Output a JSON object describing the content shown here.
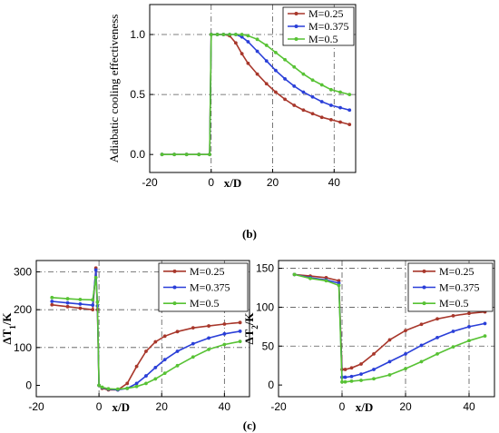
{
  "captions": {
    "b": "(b)",
    "c": "(c)"
  },
  "chart_data": [
    {
      "id": "b",
      "type": "line",
      "xlabel": "x/D",
      "ylabel": "Adiabatic cooling effectiveness",
      "xlim": [
        -20,
        47
      ],
      "ylim": [
        -0.15,
        1.25
      ],
      "xticks": [
        -20,
        0,
        20,
        40
      ],
      "yticks": [
        0.0,
        0.5,
        1.0
      ],
      "ytick_labels": [
        "0.0",
        "0.5",
        "1.0"
      ],
      "grid": "dash-dot at x=0, x=20, x=40, y=0.5, y=1.0",
      "legend_position": "top-right",
      "series": [
        {
          "name": "M=0.25",
          "color": "#a8372b",
          "x": [
            -16,
            -12,
            -8,
            -4,
            -0.5,
            0,
            2,
            4,
            6,
            8,
            10,
            12,
            15,
            18,
            21,
            24,
            27,
            30,
            33,
            36,
            39,
            42,
            45
          ],
          "y": [
            0,
            0,
            0,
            0,
            0,
            1.0,
            1.0,
            1.0,
            0.99,
            0.93,
            0.84,
            0.76,
            0.67,
            0.59,
            0.52,
            0.46,
            0.41,
            0.37,
            0.34,
            0.31,
            0.29,
            0.27,
            0.25
          ]
        },
        {
          "name": "M=0.375",
          "color": "#2a3fd8",
          "x": [
            -16,
            -12,
            -8,
            -4,
            -0.5,
            0,
            2,
            4,
            6,
            8,
            10,
            12,
            15,
            18,
            21,
            24,
            27,
            30,
            33,
            36,
            39,
            42,
            45
          ],
          "y": [
            0,
            0,
            0,
            0,
            0,
            1.0,
            1.0,
            1.0,
            1.0,
            1.0,
            0.98,
            0.94,
            0.86,
            0.78,
            0.7,
            0.63,
            0.57,
            0.52,
            0.48,
            0.44,
            0.41,
            0.39,
            0.37
          ]
        },
        {
          "name": "M=0.5",
          "color": "#57c234",
          "x": [
            -16,
            -12,
            -8,
            -4,
            -0.5,
            0,
            2,
            4,
            6,
            8,
            10,
            12,
            15,
            18,
            21,
            24,
            27,
            30,
            33,
            36,
            39,
            42,
            45
          ],
          "y": [
            0,
            0,
            0,
            0,
            0,
            1.0,
            1.0,
            1.0,
            1.0,
            1.0,
            1.0,
            0.99,
            0.96,
            0.91,
            0.85,
            0.79,
            0.73,
            0.67,
            0.62,
            0.58,
            0.54,
            0.52,
            0.5
          ]
        }
      ]
    },
    {
      "id": "c-left",
      "type": "line",
      "xlabel": "x/D",
      "ylabel": "ΔT1/K",
      "xlim": [
        -20,
        48
      ],
      "ylim": [
        -30,
        330
      ],
      "xticks": [
        -20,
        0,
        20,
        40
      ],
      "yticks": [
        0,
        100,
        200,
        300
      ],
      "grid": "dash-dot at x=0, x=20, x=40, y=100, y=200, y=300",
      "legend_position": "top-right",
      "series": [
        {
          "name": "M=0.25",
          "color": "#a8372b",
          "x": [
            -15,
            -10,
            -6,
            -2,
            -1,
            -0.5,
            0,
            1,
            3,
            6,
            9,
            12,
            15,
            18,
            21,
            25,
            30,
            35,
            40,
            45
          ],
          "y": [
            213,
            208,
            204,
            200,
            310,
            200,
            0,
            -8,
            -12,
            -12,
            5,
            50,
            90,
            115,
            130,
            142,
            152,
            157,
            162,
            166
          ]
        },
        {
          "name": "M=0.375",
          "color": "#2a3fd8",
          "x": [
            -15,
            -10,
            -6,
            -2,
            -1,
            -0.5,
            0,
            1,
            3,
            6,
            9,
            12,
            15,
            18,
            21,
            25,
            30,
            35,
            40,
            45
          ],
          "y": [
            222,
            218,
            215,
            212,
            305,
            210,
            0,
            -6,
            -10,
            -12,
            -8,
            5,
            25,
            47,
            68,
            90,
            110,
            125,
            136,
            143
          ]
        },
        {
          "name": "M=0.5",
          "color": "#57c234",
          "x": [
            -15,
            -10,
            -6,
            -2,
            -1,
            -0.5,
            0,
            1,
            3,
            6,
            9,
            12,
            15,
            18,
            21,
            25,
            30,
            35,
            40,
            45
          ],
          "y": [
            232,
            229,
            227,
            226,
            285,
            220,
            0,
            -5,
            -9,
            -10,
            -8,
            -3,
            5,
            17,
            32,
            52,
            75,
            95,
            108,
            116
          ]
        }
      ]
    },
    {
      "id": "c-right",
      "type": "line",
      "xlabel": "x/D",
      "ylabel": "ΔT2/K",
      "xlim": [
        -20,
        48
      ],
      "ylim": [
        -15,
        160
      ],
      "xticks": [
        -20,
        0,
        20,
        40
      ],
      "yticks": [
        0,
        50,
        100,
        150
      ],
      "grid": "dash-dot at x=0, x=20, x=40, y=50, y=100, y=150",
      "legend_position": "top-right",
      "series": [
        {
          "name": "M=0.25",
          "color": "#a8372b",
          "x": [
            -15,
            -10,
            -5,
            -1,
            0,
            1,
            3,
            6,
            10,
            15,
            20,
            25,
            30,
            35,
            40,
            45
          ],
          "y": [
            142,
            140,
            138,
            134,
            20,
            20,
            22,
            27,
            40,
            58,
            70,
            78,
            85,
            89,
            92,
            94
          ]
        },
        {
          "name": "M=0.375",
          "color": "#2a3fd8",
          "x": [
            -15,
            -10,
            -5,
            -1,
            0,
            1,
            3,
            6,
            10,
            15,
            20,
            25,
            30,
            35,
            40,
            45
          ],
          "y": [
            142,
            138,
            135,
            131,
            10,
            10,
            11,
            14,
            20,
            30,
            40,
            51,
            61,
            69,
            75,
            79
          ]
        },
        {
          "name": "M=0.5",
          "color": "#57c234",
          "x": [
            -15,
            -10,
            -5,
            -1,
            0,
            1,
            3,
            6,
            10,
            15,
            20,
            25,
            30,
            35,
            40,
            45
          ],
          "y": [
            142,
            137,
            134,
            128,
            4,
            4,
            5,
            6,
            8,
            13,
            21,
            30,
            40,
            49,
            57,
            63
          ]
        }
      ]
    }
  ]
}
